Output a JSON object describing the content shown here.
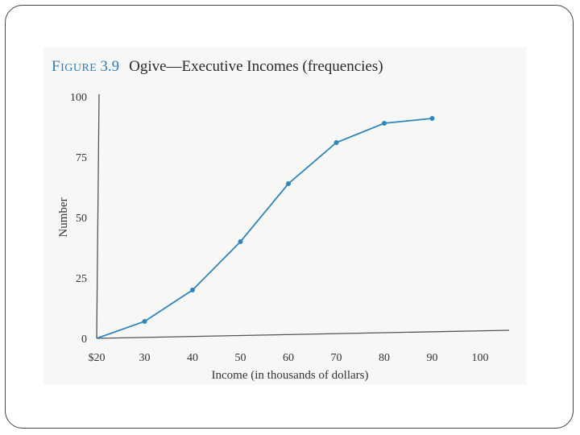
{
  "figure": {
    "label": "Figure",
    "number": "3.9",
    "caption": "Ogive—Executive Incomes (frequencies)"
  },
  "chart_data": {
    "type": "line",
    "title": "Ogive—Executive Incomes (frequencies)",
    "xlabel": "Income (in thousands of dollars)",
    "ylabel": "Number",
    "x_tick_labels": [
      "$20",
      "30",
      "40",
      "50",
      "60",
      "70",
      "80",
      "90",
      "100"
    ],
    "x_ticks": [
      20,
      30,
      40,
      50,
      60,
      70,
      80,
      90,
      100
    ],
    "y_tick_labels": [
      "0",
      "25",
      "50",
      "75",
      "100"
    ],
    "y_ticks": [
      0,
      25,
      50,
      75,
      100
    ],
    "xlim": [
      20,
      107
    ],
    "ylim": [
      0,
      100
    ],
    "grid": false,
    "series": [
      {
        "x": [
          20,
          30,
          40,
          50,
          60,
          70,
          80,
          90
        ],
        "y": [
          0,
          7,
          20,
          40,
          64,
          81,
          89,
          91
        ]
      }
    ],
    "colors": {
      "line": "#2f86bb",
      "axis": "#555555"
    }
  }
}
